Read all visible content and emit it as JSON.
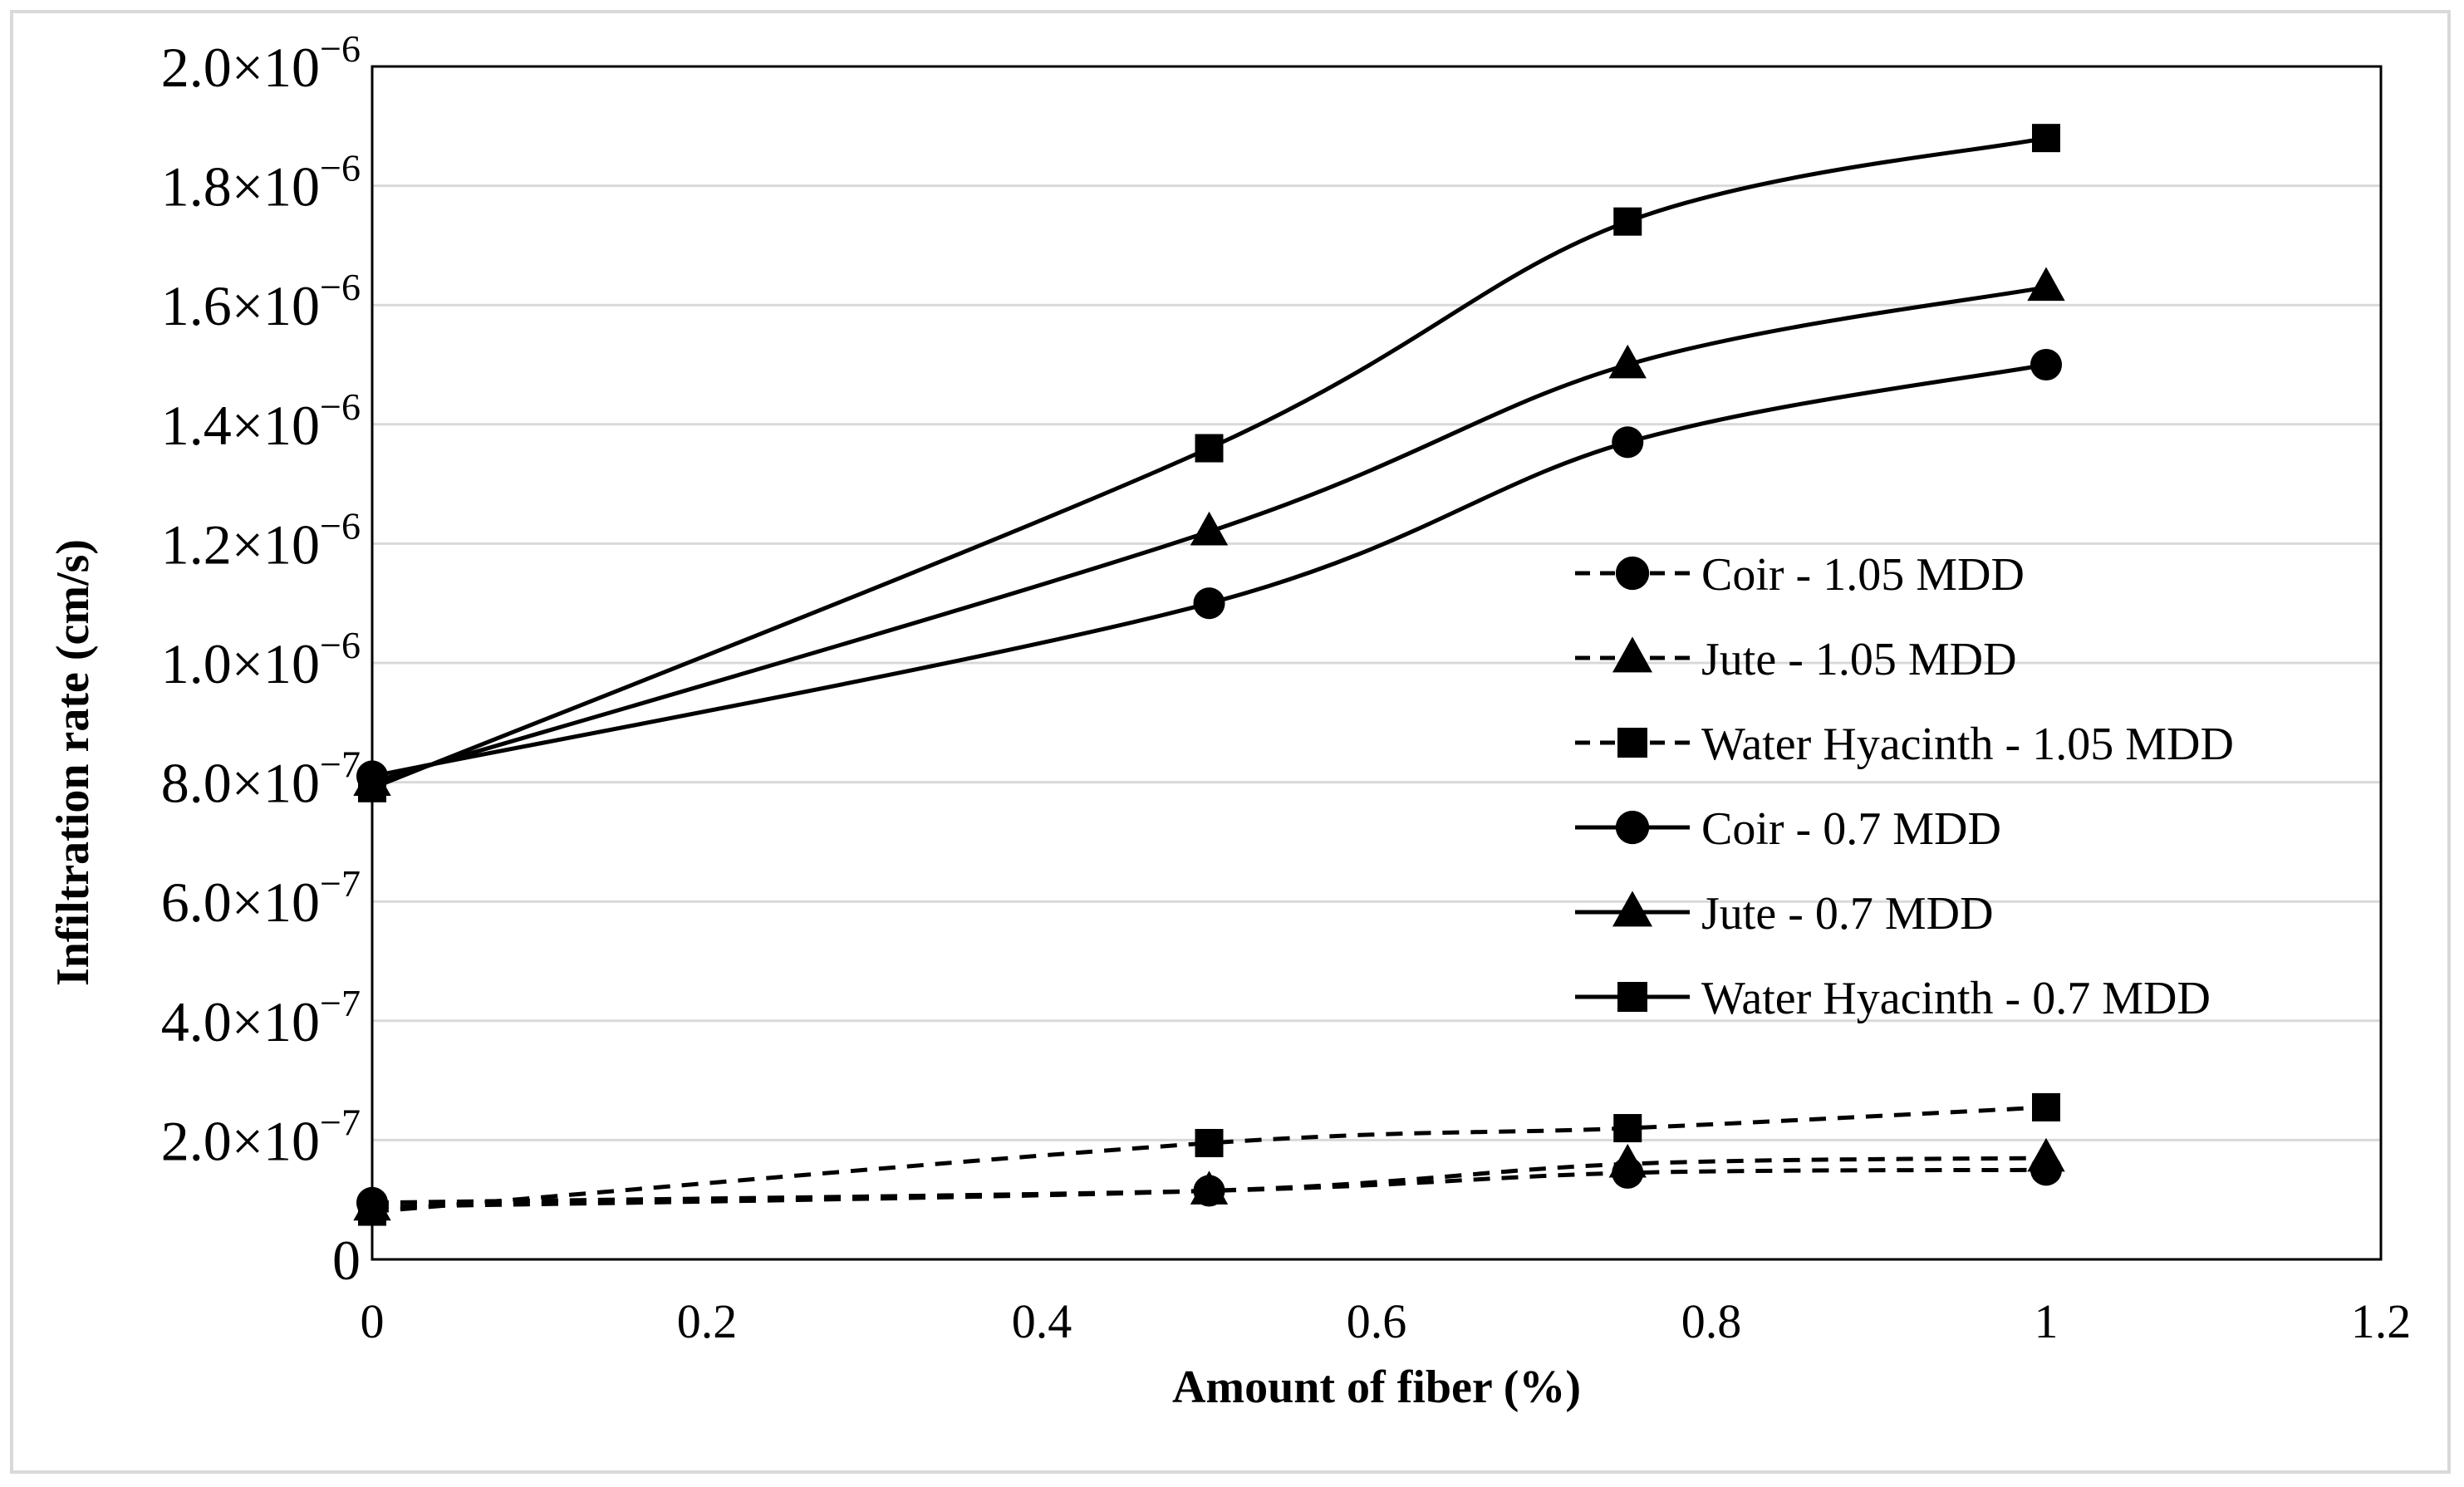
{
  "chart_data": {
    "type": "line",
    "title": "",
    "xlabel": "Amount of fiber (%)",
    "ylabel": "Infiltration rate (cm/s)",
    "xlim": [
      0,
      1.2
    ],
    "ylim": [
      0,
      2e-06
    ],
    "x_ticks": [
      {
        "value": 0,
        "label": "0"
      },
      {
        "value": 0.2,
        "label": "0.2"
      },
      {
        "value": 0.4,
        "label": "0.4"
      },
      {
        "value": 0.6,
        "label": "0.6"
      },
      {
        "value": 0.8,
        "label": "0.8"
      },
      {
        "value": 1.0,
        "label": "1"
      },
      {
        "value": 1.2,
        "label": "1.2"
      }
    ],
    "y_ticks": [
      {
        "value": 0,
        "mantissa": "0",
        "exponent": ""
      },
      {
        "value": 2e-07,
        "mantissa": "2.0×10",
        "exponent": "−7"
      },
      {
        "value": 4e-07,
        "mantissa": "4.0×10",
        "exponent": "−7"
      },
      {
        "value": 6e-07,
        "mantissa": "6.0×10",
        "exponent": "−7"
      },
      {
        "value": 8e-07,
        "mantissa": "8.0×10",
        "exponent": "−7"
      },
      {
        "value": 1e-06,
        "mantissa": "1.0×10",
        "exponent": "−6"
      },
      {
        "value": 1.2e-06,
        "mantissa": "1.2×10",
        "exponent": "−6"
      },
      {
        "value": 1.4e-06,
        "mantissa": "1.4×10",
        "exponent": "−6"
      },
      {
        "value": 1.6e-06,
        "mantissa": "1.6×10",
        "exponent": "−6"
      },
      {
        "value": 1.8e-06,
        "mantissa": "1.8×10",
        "exponent": "−6"
      },
      {
        "value": 2e-06,
        "mantissa": "2.0×10",
        "exponent": "−6"
      }
    ],
    "grid": "horizontal",
    "legend_position": "center-right",
    "x": [
      0,
      0.5,
      0.75,
      1.0
    ],
    "series": [
      {
        "name": "Coir - 1.05 MDD",
        "style": "dashed",
        "marker": "circle",
        "values": [
          9.5e-08,
          1.15e-07,
          1.45e-07,
          1.5e-07
        ]
      },
      {
        "name": "Jute - 1.05 MDD",
        "style": "dashed",
        "marker": "triangle",
        "values": [
          8.8e-08,
          1.15e-07,
          1.6e-07,
          1.7e-07
        ]
      },
      {
        "name": "Water Hyacinth - 1.05 MDD",
        "style": "dashed",
        "marker": "square",
        "values": [
          8e-08,
          1.95e-07,
          2.2e-07,
          2.55e-07
        ]
      },
      {
        "name": "Coir - 0.7 MDD",
        "style": "solid",
        "marker": "circle",
        "values": [
          8.1e-07,
          1.1e-06,
          1.37e-06,
          1.5e-06
        ]
      },
      {
        "name": "Jute - 0.7 MDD",
        "style": "solid",
        "marker": "triangle",
        "values": [
          8e-07,
          1.22e-06,
          1.5e-06,
          1.63e-06
        ]
      },
      {
        "name": "Water Hyacinth - 0.7 MDD",
        "style": "solid",
        "marker": "square",
        "values": [
          7.9e-07,
          1.36e-06,
          1.74e-06,
          1.88e-06
        ]
      }
    ]
  }
}
